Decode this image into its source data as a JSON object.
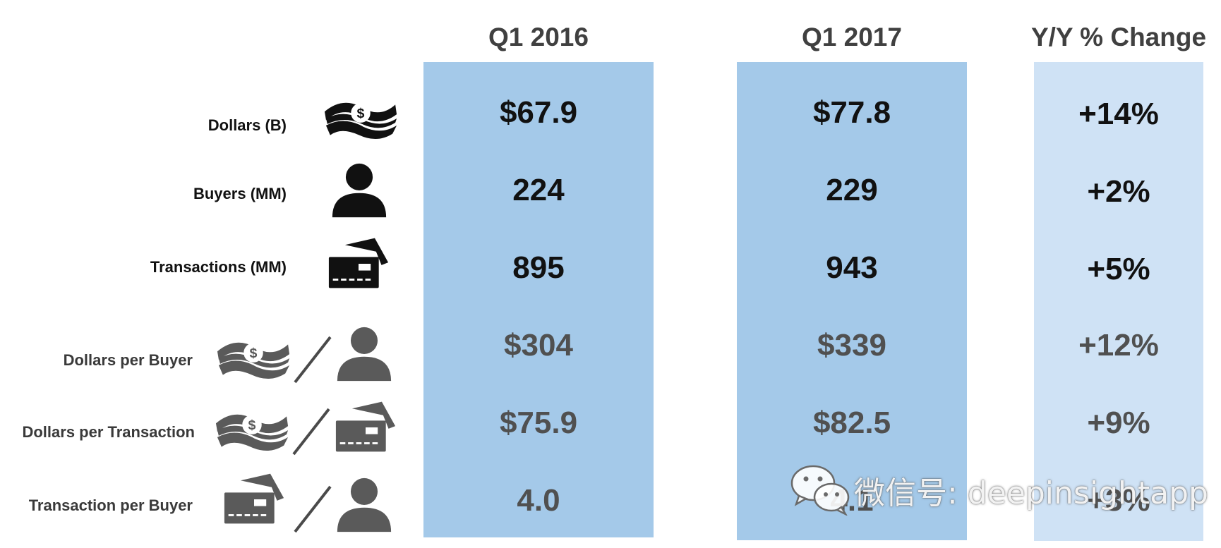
{
  "columns": {
    "q1_2016": "Q1 2016",
    "q1_2017": "Q1 2017",
    "yoy": "Y/Y % Change"
  },
  "rows": [
    {
      "label": "Dollars (B)",
      "q1_2016": "$67.9",
      "q1_2017": "$77.8",
      "yoy": "+14%",
      "icons": [
        "money-icon"
      ]
    },
    {
      "label": "Buyers (MM)",
      "q1_2016": "224",
      "q1_2017": "229",
      "yoy": "+2%",
      "icons": [
        "person-icon"
      ]
    },
    {
      "label": "Transactions (MM)",
      "q1_2016": "895",
      "q1_2017": "943",
      "yoy": "+5%",
      "icons": [
        "credit-card-icon"
      ]
    },
    {
      "label": "Dollars per Buyer",
      "q1_2016": "$304",
      "q1_2017": "$339",
      "yoy": "+12%",
      "icons": [
        "money-icon",
        "slash",
        "person-icon"
      ]
    },
    {
      "label": "Dollars per Transaction",
      "q1_2016": "$75.9",
      "q1_2017": "$82.5",
      "yoy": "+9%",
      "icons": [
        "money-icon",
        "slash",
        "credit-card-icon"
      ]
    },
    {
      "label": "Transaction per Buyer",
      "q1_2016": "4.0",
      "q1_2017": "4.1",
      "yoy": "+3%",
      "icons": [
        "credit-card-icon",
        "slash",
        "person-icon"
      ]
    }
  ],
  "watermark": {
    "text": "微信号: deepinsightapp",
    "icon": "wechat-icon"
  },
  "colors": {
    "column_fill": "#a4c9e9",
    "yoy_fill": "#cfe2f5",
    "primary_text": "#111111",
    "derived_text": "#505050",
    "header_text": "#404040"
  }
}
